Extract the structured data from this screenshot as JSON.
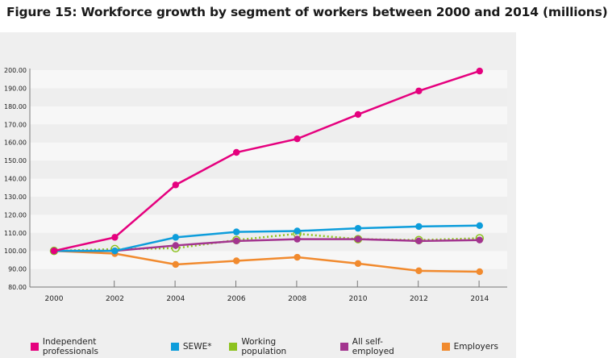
{
  "chart_data": {
    "type": "line",
    "title": "Figure 15: Workforce growth by segment of workers between 2000 and 2014 (millions)",
    "x": [
      "2000",
      "2002",
      "2004",
      "2006",
      "2008",
      "2010",
      "2012",
      "2014"
    ],
    "ylim": [
      80,
      200
    ],
    "yticks": [
      "80.00",
      "90.00",
      "100.00",
      "110.00",
      "120.00",
      "130.00",
      "140.00",
      "150.00",
      "160.00",
      "170.00",
      "180.00",
      "190.00",
      "200.00"
    ],
    "grid": "alternating horizontal bands",
    "legend_position": "bottom",
    "series": [
      {
        "name": "Independent professionals",
        "color": "#e5007e",
        "marker": "filled",
        "values": [
          100,
          107.5,
          136.5,
          154.5,
          162,
          175.5,
          188.5,
          199.5
        ]
      },
      {
        "name": "SEWE*",
        "color": "#0d9ddb",
        "marker": "filled",
        "values": [
          100,
          100,
          107.5,
          110.5,
          111,
          112.5,
          113.5,
          114
        ]
      },
      {
        "name": "Working population",
        "color": "#8dc21f",
        "marker": "hollow",
        "dashed": true,
        "values": [
          100,
          101,
          101.5,
          106,
          109.5,
          106.5,
          106,
          107
        ]
      },
      {
        "name": "All self-employed",
        "color": "#a3348f",
        "marker": "filled",
        "values": [
          100,
          100,
          103,
          105.5,
          106.5,
          106.5,
          105.5,
          106
        ]
      },
      {
        "name": "Employers",
        "color": "#f18a2e",
        "marker": "filled",
        "values": [
          100,
          98.5,
          92.5,
          94.5,
          96.5,
          93,
          89,
          88.5
        ]
      }
    ]
  }
}
